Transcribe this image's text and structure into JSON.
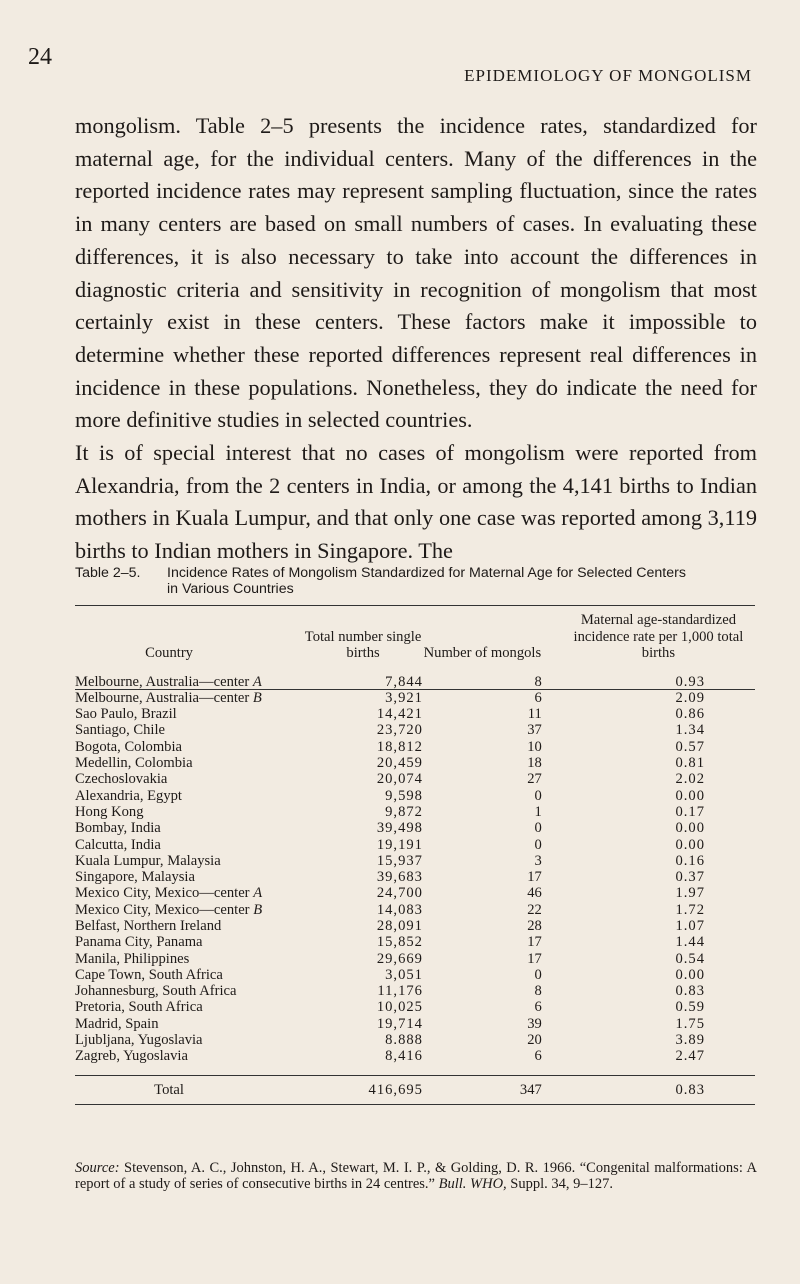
{
  "page_number": "24",
  "running_head": "EPIDEMIOLOGY OF MONGOLISM",
  "paragraphs": [
    "mongolism. Table 2–5 presents the incidence rates, standardized for maternal age, for the individual centers. Many of the differences in the reported incidence rates may represent sampling fluctuation, since the rates in many centers are based on small numbers of cases. In evaluating these differences, it is also necessary to take into account the differences in diagnostic criteria and sensitivity in recognition of mongolism that most certainly exist in these centers. These factors make it impossible to determine whether these reported differences represent real differences in incidence in these populations. Nonetheless, they do indicate the need for more definitive studies in selected countries.",
    "It is of special interest that no cases of mongolism were reported from Alexandria, from the 2 centers in India, or among the 4,141 births to Indian mothers in Kuala Lumpur, and that only one case was reported among 3,119 births to Indian mothers in Singapore. The"
  ],
  "table": {
    "label": "Table 2–5.",
    "caption_line1": "Incidence Rates of Mongolism Standardized for Maternal Age for Selected Centers",
    "caption_line2": "in Various Countries",
    "headers": [
      "Country",
      "Total number single births",
      "Number of mongols",
      "Maternal age-standardized incidence rate per 1,000 total births"
    ],
    "rows": [
      [
        "Melbourne, Australia—center A",
        "7,844",
        "8",
        "0.93"
      ],
      [
        "Melbourne, Australia—center B",
        "3,921",
        "6",
        "2.09"
      ],
      [
        "Sao Paulo, Brazil",
        "14,421",
        "11",
        "0.86"
      ],
      [
        "Santiago, Chile",
        "23,720",
        "37",
        "1.34"
      ],
      [
        "Bogota, Colombia",
        "18,812",
        "10",
        "0.57"
      ],
      [
        "Medellin, Colombia",
        "20,459",
        "18",
        "0.81"
      ],
      [
        "Czechoslovakia",
        "20,074",
        "27",
        "2.02"
      ],
      [
        "Alexandria, Egypt",
        "9,598",
        "0",
        "0.00"
      ],
      [
        "Hong Kong",
        "9,872",
        "1",
        "0.17"
      ],
      [
        "Bombay, India",
        "39,498",
        "0",
        "0.00"
      ],
      [
        "Calcutta, India",
        "19,191",
        "0",
        "0.00"
      ],
      [
        "Kuala Lumpur, Malaysia",
        "15,937",
        "3",
        "0.16"
      ],
      [
        "Singapore, Malaysia",
        "39,683",
        "17",
        "0.37"
      ],
      [
        "Mexico City, Mexico—center A",
        "24,700",
        "46",
        "1.97"
      ],
      [
        "Mexico City, Mexico—center B",
        "14,083",
        "22",
        "1.72"
      ],
      [
        "Belfast, Northern Ireland",
        "28,091",
        "28",
        "1.07"
      ],
      [
        "Panama City, Panama",
        "15,852",
        "17",
        "1.44"
      ],
      [
        "Manila, Philippines",
        "29,669",
        "17",
        "0.54"
      ],
      [
        "Cape Town, South Africa",
        "3,051",
        "0",
        "0.00"
      ],
      [
        "Johannesburg, South Africa",
        "11,176",
        "8",
        "0.83"
      ],
      [
        "Pretoria, South Africa",
        "10,025",
        "6",
        "0.59"
      ],
      [
        "Madrid, Spain",
        "19,714",
        "39",
        "1.75"
      ],
      [
        "Ljubljana, Yugoslavia",
        "8.888",
        "20",
        "3.89"
      ],
      [
        "Zagreb, Yugoslavia",
        "8,416",
        "6",
        "2.47"
      ]
    ],
    "total": [
      "Total",
      "416,695",
      "347",
      "0.83"
    ]
  },
  "source": {
    "label": "Source:",
    "text": "Stevenson, A. C., Johnston, H. A., Stewart, M. I. P., & Golding, D. R. 1966. “Congenital malformations: A report of a study of series of consecutive births in 24 centres.”",
    "journal": "Bull. WHO,",
    "tail": "Suppl. 34, 9–127."
  }
}
